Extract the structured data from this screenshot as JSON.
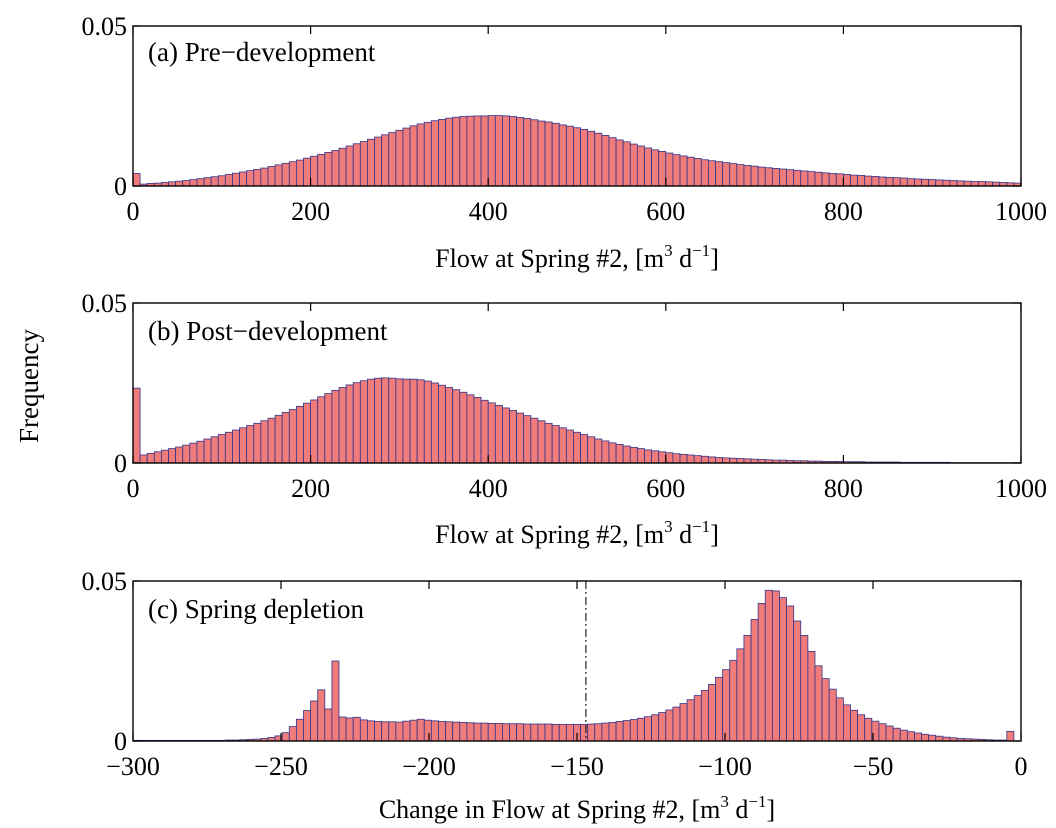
{
  "ylabel": "Frequency",
  "chart_data": [
    {
      "type": "bar",
      "title": "(a) Pre−development",
      "xlabel": "Flow at Spring #2, [m",
      "xlabel_exp1": "3",
      "xlabel_mid": " d",
      "xlabel_exp2": "−1",
      "xlabel_end": "]",
      "xlim": [
        0,
        1000
      ],
      "ylim": [
        0,
        0.05
      ],
      "xticks": [
        "0",
        "200",
        "400",
        "600",
        "800",
        "1000"
      ],
      "yticks": [
        "0",
        "0.05"
      ],
      "bin_width": 8,
      "bin_start": 0,
      "values": [
        0.0039,
        0.0006,
        0.0008,
        0.0009,
        0.0011,
        0.0013,
        0.0015,
        0.0017,
        0.002,
        0.0023,
        0.0026,
        0.0029,
        0.0032,
        0.0036,
        0.004,
        0.0044,
        0.0048,
        0.0052,
        0.0056,
        0.0061,
        0.0066,
        0.0071,
        0.0076,
        0.0081,
        0.0087,
        0.0093,
        0.0099,
        0.0105,
        0.0111,
        0.0118,
        0.0125,
        0.0132,
        0.0139,
        0.0146,
        0.0153,
        0.016,
        0.0167,
        0.0174,
        0.0181,
        0.0188,
        0.0194,
        0.0199,
        0.0204,
        0.0208,
        0.0212,
        0.0215,
        0.0217,
        0.0218,
        0.0219,
        0.0219,
        0.022,
        0.022,
        0.0219,
        0.0217,
        0.0214,
        0.0211,
        0.0207,
        0.0203,
        0.02,
        0.0196,
        0.0191,
        0.0187,
        0.0182,
        0.0177,
        0.0171,
        0.0165,
        0.0158,
        0.0151,
        0.0144,
        0.0138,
        0.0131,
        0.0125,
        0.0119,
        0.0113,
        0.0108,
        0.0103,
        0.0098,
        0.0094,
        0.009,
        0.0086,
        0.0082,
        0.0079,
        0.0076,
        0.0073,
        0.007,
        0.0067,
        0.0064,
        0.0062,
        0.0059,
        0.0057,
        0.0055,
        0.0053,
        0.0051,
        0.0049,
        0.0047,
        0.0045,
        0.0043,
        0.0041,
        0.0039,
        0.0038,
        0.0036,
        0.0034,
        0.0033,
        0.0031,
        0.003,
        0.0028,
        0.0027,
        0.0026,
        0.0025,
        0.0023,
        0.0022,
        0.0021,
        0.002,
        0.0019,
        0.0018,
        0.0017,
        0.0016,
        0.0015,
        0.0014,
        0.0014,
        0.0013,
        0.0012,
        0.0011,
        0.001,
        0.0009
      ]
    },
    {
      "type": "bar",
      "title": "(b) Post−development",
      "xlabel": "Flow at Spring #2, [m",
      "xlabel_exp1": "3",
      "xlabel_mid": " d",
      "xlabel_exp2": "−1",
      "xlabel_end": "]",
      "xlim": [
        0,
        1000
      ],
      "ylim": [
        0,
        0.05
      ],
      "xticks": [
        "0",
        "200",
        "400",
        "600",
        "800",
        "1000"
      ],
      "yticks": [
        "0",
        "0.05"
      ],
      "bin_width": 8,
      "bin_start": 0,
      "values": [
        0.0234,
        0.0025,
        0.003,
        0.0035,
        0.004,
        0.0045,
        0.005,
        0.0056,
        0.0062,
        0.0068,
        0.0075,
        0.0082,
        0.0089,
        0.0096,
        0.0103,
        0.011,
        0.0117,
        0.0124,
        0.0132,
        0.014,
        0.0149,
        0.0158,
        0.0167,
        0.0177,
        0.0187,
        0.0197,
        0.0207,
        0.0217,
        0.0227,
        0.0236,
        0.0244,
        0.0251,
        0.0257,
        0.0262,
        0.0265,
        0.0266,
        0.0265,
        0.0263,
        0.0262,
        0.0262,
        0.026,
        0.0256,
        0.025,
        0.0243,
        0.0236,
        0.0229,
        0.0221,
        0.0213,
        0.0205,
        0.0196,
        0.0188,
        0.018,
        0.0172,
        0.0164,
        0.0156,
        0.0148,
        0.014,
        0.0132,
        0.0124,
        0.0117,
        0.011,
        0.0103,
        0.0096,
        0.0089,
        0.0082,
        0.0075,
        0.0069,
        0.0063,
        0.0058,
        0.0053,
        0.0049,
        0.0045,
        0.0041,
        0.0038,
        0.0035,
        0.0032,
        0.0029,
        0.0027,
        0.0025,
        0.0023,
        0.0021,
        0.0019,
        0.0017,
        0.0016,
        0.0015,
        0.0014,
        0.0013,
        0.0012,
        0.0011,
        0.001,
        0.0009,
        0.0009,
        0.0008,
        0.0007,
        0.0007,
        0.0006,
        0.0006,
        0.0005,
        0.0005,
        0.0005,
        0.0004,
        0.0004,
        0.0004,
        0.0003,
        0.0003,
        0.0003,
        0.0003,
        0.0003,
        0.0002,
        0.0002,
        0.0002,
        0.0002,
        0.0002,
        0.0002,
        0.0002,
        0.0001,
        0.0001,
        0.0001,
        0.0001,
        0.0001,
        0.0001,
        0.0001,
        0.0001,
        0.0001,
        0.0001
      ]
    },
    {
      "type": "bar",
      "title": "(c) Spring depletion",
      "xlabel": "Change in Flow at Spring #2, [m",
      "xlabel_exp1": "3",
      "xlabel_mid": " d",
      "xlabel_exp2": "−1",
      "xlabel_end": "]",
      "xlim": [
        -300,
        0
      ],
      "ylim": [
        0,
        0.05
      ],
      "xticks": [
        "−300",
        "−250",
        "−200",
        "−150",
        "−100",
        "−50",
        "0"
      ],
      "yticks": [
        "0",
        "0.05"
      ],
      "reference_line_x": -147,
      "bin_width": 2.4,
      "bin_start": -300,
      "values": [
        0.0002,
        0.0002,
        0.0002,
        0.0002,
        0.0002,
        0.0002,
        0.0002,
        0.0002,
        0.0002,
        0.0002,
        0.0002,
        0.0002,
        0.0002,
        0.0003,
        0.0003,
        0.0004,
        0.0005,
        0.0006,
        0.0008,
        0.0011,
        0.0016,
        0.0026,
        0.0045,
        0.0068,
        0.0095,
        0.0125,
        0.016,
        0.01,
        0.025,
        0.0075,
        0.0072,
        0.0074,
        0.0066,
        0.0063,
        0.0061,
        0.006,
        0.006,
        0.0059,
        0.0062,
        0.0065,
        0.0068,
        0.0065,
        0.0063,
        0.0061,
        0.006,
        0.0059,
        0.0058,
        0.0057,
        0.0056,
        0.0056,
        0.0055,
        0.0055,
        0.0054,
        0.0054,
        0.0054,
        0.0053,
        0.0053,
        0.0053,
        0.0053,
        0.0052,
        0.0052,
        0.0052,
        0.0052,
        0.0052,
        0.0053,
        0.0054,
        0.0056,
        0.0058,
        0.0061,
        0.0064,
        0.0067,
        0.0071,
        0.0076,
        0.0082,
        0.0089,
        0.0097,
        0.0106,
        0.0117,
        0.0129,
        0.0142,
        0.0158,
        0.0177,
        0.0199,
        0.0223,
        0.0252,
        0.0288,
        0.033,
        0.038,
        0.043,
        0.0471,
        0.0469,
        0.0448,
        0.0422,
        0.0375,
        0.033,
        0.028,
        0.0235,
        0.0195,
        0.0162,
        0.0135,
        0.0113,
        0.0096,
        0.0082,
        0.0071,
        0.0062,
        0.0054,
        0.0047,
        0.004,
        0.0034,
        0.0029,
        0.0025,
        0.0021,
        0.0018,
        0.0015,
        0.0012,
        0.001,
        0.0008,
        0.0007,
        0.0006,
        0.0005,
        0.0004,
        0.0003,
        0.0003,
        0.003
      ]
    }
  ]
}
